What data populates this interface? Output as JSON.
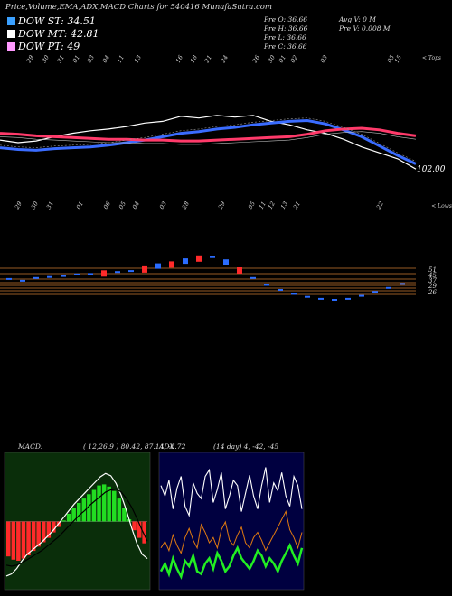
{
  "header": {
    "title": "Price,Volume,EMA,ADX,MACD Charts for 540416  MunafaSutra.com"
  },
  "dow": [
    {
      "label": "DOW ST: 34.51",
      "color": "#3aa0ff"
    },
    {
      "label": "DOW MT: 42.81",
      "color": "#ffffff"
    },
    {
      "label": "DOW PT: 49",
      "color": "#ff99ff"
    }
  ],
  "ohlc": {
    "open": "Pre   O: 36.66",
    "high": "Pre   H: 36.66",
    "low": "Pre   L: 36.66",
    "close": "Pre   C: 36.66",
    "avg_vol": "Avg V: 0  M",
    "pre_vol": "Pre   V: 0.008  M"
  },
  "labels": {
    "tops": "< Tops",
    "lows": "< Lows",
    "price_level": "102.00"
  },
  "top_dates": [
    "29",
    "30",
    "31",
    "01",
    "03",
    "04",
    "11",
    "13",
    "16",
    "18",
    "21",
    "24",
    "26",
    "30",
    "01",
    "02",
    "03",
    "05",
    "15"
  ],
  "low_dates": [
    "29",
    "30",
    "31",
    "01",
    "06",
    "05",
    "04",
    "03",
    "28",
    "29",
    "05",
    "11",
    "12",
    "13",
    "21",
    "22"
  ],
  "colors": {
    "price": "#ffffff",
    "ema_short": "#3a6cff",
    "ema_long": "#ff3a6a",
    "grid": "#c87830"
  },
  "chart_data": [
    {
      "type": "line",
      "title": "",
      "series": [
        {
          "values": [
            105.8,
            105.5,
            105.7,
            106.2,
            106.6,
            106.9,
            107.1,
            107.4,
            107.8,
            108.0,
            108.6,
            108.4,
            108.7,
            108.5,
            108.7,
            108.0,
            107.6,
            107.0,
            106.6,
            105.9,
            105.0,
            104.3,
            103.6,
            102.4
          ]
        },
        {
          "values": [
            104.9,
            104.7,
            104.6,
            104.8,
            104.9,
            105.0,
            105.2,
            105.5,
            105.8,
            106.2,
            106.6,
            106.8,
            107.1,
            107.3,
            107.6,
            107.8,
            108.0,
            108.1,
            107.7,
            107.0,
            106.2,
            105.1,
            104.0,
            103.0
          ]
        },
        {
          "values": [
            106.6,
            106.5,
            106.3,
            106.2,
            106.1,
            106.0,
            105.9,
            105.9,
            105.8,
            105.8,
            105.7,
            105.7,
            105.8,
            105.9,
            106.0,
            106.1,
            106.2,
            106.5,
            106.9,
            107.1,
            107.2,
            107.0,
            106.6,
            106.3
          ]
        }
      ]
    },
    {
      "type": "bar",
      "title": "",
      "y_labels": [
        "51",
        "45",
        "37",
        "29",
        "26"
      ],
      "values": [
        0.05,
        -0.04,
        0.1,
        0.15,
        0.2,
        0.28,
        0.3,
        0.35,
        0.4,
        0.45,
        0.55,
        0.7,
        0.8,
        0.95,
        1.1,
        1.15,
        0.9,
        0.5,
        0.1,
        -0.25,
        -0.5,
        -0.7,
        -0.85,
        -0.95,
        -1.0,
        -0.95,
        -0.8,
        -0.6,
        -0.4,
        -0.2
      ]
    },
    {
      "type": "bar",
      "title": "MACD:",
      "params": "( 12,26,9 ) 80.42,  87.14,  -6.72",
      "histogram": [
        -3.2,
        -3.5,
        -3.6,
        -3.4,
        -3.1,
        -2.7,
        -2.3,
        -1.9,
        -1.5,
        -1.0,
        -0.5,
        0.1,
        0.7,
        1.2,
        1.7,
        2.1,
        2.5,
        2.9,
        3.3,
        3.4,
        3.2,
        2.8,
        2.1,
        1.2,
        0.2,
        -0.8,
        -1.5,
        -2.0
      ],
      "macd": [
        -5.0,
        -4.8,
        -4.3,
        -3.6,
        -3.0,
        -2.6,
        -2.2,
        -1.8,
        -1.3,
        -0.8,
        -0.2,
        0.4,
        1.0,
        1.6,
        2.1,
        2.6,
        3.1,
        3.6,
        4.1,
        4.4,
        4.2,
        3.5,
        2.4,
        1.0,
        -0.6,
        -2.0,
        -3.0,
        -3.4
      ],
      "signal": [
        -4.0,
        -4.1,
        -4.0,
        -3.8,
        -3.5,
        -3.2,
        -2.9,
        -2.6,
        -2.2,
        -1.8,
        -1.4,
        -0.9,
        -0.4,
        0.1,
        0.6,
        1.0,
        1.5,
        1.9,
        2.3,
        2.7,
        2.9,
        3.0,
        2.7,
        2.1,
        1.3,
        0.3,
        -0.8,
        -1.8
      ]
    },
    {
      "type": "line",
      "title": "ADX",
      "params": "(14  day) 4,  -42,  -45",
      "adx": [
        78,
        70,
        82,
        60,
        76,
        85,
        62,
        55,
        80,
        72,
        68,
        85,
        90,
        65,
        75,
        88,
        60,
        70,
        82,
        78,
        58,
        72,
        86,
        70,
        60,
        78,
        92,
        65,
        80,
        74,
        88,
        70,
        62,
        85,
        78,
        60
      ],
      "di_plus": [
        12,
        18,
        10,
        22,
        14,
        8,
        20,
        16,
        24,
        12,
        10,
        18,
        22,
        14,
        26,
        20,
        12,
        16,
        24,
        30,
        22,
        18,
        14,
        20,
        28,
        24,
        16,
        22,
        18,
        12,
        20,
        26,
        32,
        24,
        18,
        30
      ],
      "di_minus": [
        30,
        35,
        28,
        40,
        32,
        26,
        38,
        45,
        36,
        30,
        48,
        42,
        34,
        38,
        30,
        44,
        50,
        36,
        32,
        40,
        46,
        34,
        30,
        38,
        42,
        36,
        28,
        34,
        40,
        46,
        52,
        58,
        44,
        38,
        30,
        42
      ]
    }
  ]
}
